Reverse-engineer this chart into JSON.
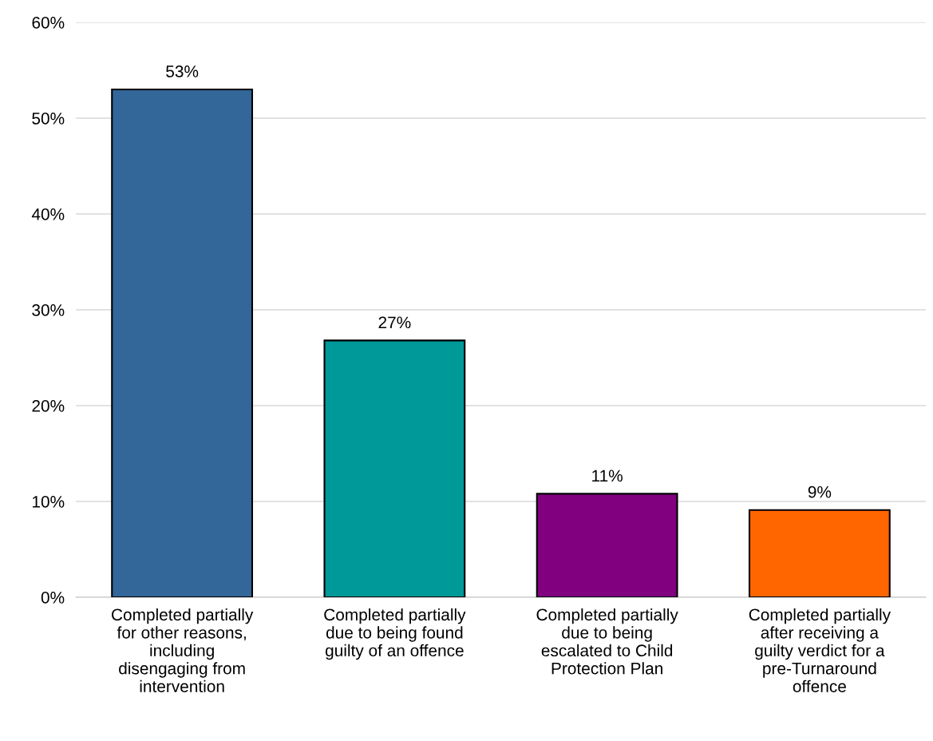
{
  "chart_data": {
    "type": "bar",
    "categories": [
      "Completed partially\nfor other reasons,\nincluding\ndisengaging from\nintervention",
      "Completed partially\ndue to being found\nguilty of an offence",
      "Completed partially\ndue to being\nescalated to Child\nProtection Plan",
      "Completed partially\nafter receiving a\nguilty verdict for a\npre-Turnaround\noffence"
    ],
    "values": [
      53,
      26.8,
      10.8,
      9.1
    ],
    "colors": [
      "#336699",
      "#009999",
      "#800080",
      "#ff6600"
    ],
    "value_labels": [
      "53%",
      "27%",
      "11%",
      "9%"
    ],
    "ylim": [
      0,
      60
    ],
    "yticks": [
      {
        "value": 0,
        "label": "0%"
      },
      {
        "value": 10,
        "label": "10%"
      },
      {
        "value": 20,
        "label": "20%"
      },
      {
        "value": 30,
        "label": "30%"
      },
      {
        "value": 40,
        "label": "40%"
      },
      {
        "value": 50,
        "label": "50%"
      },
      {
        "value": 60,
        "label": "60%"
      }
    ],
    "grid": "y",
    "legend": false
  }
}
